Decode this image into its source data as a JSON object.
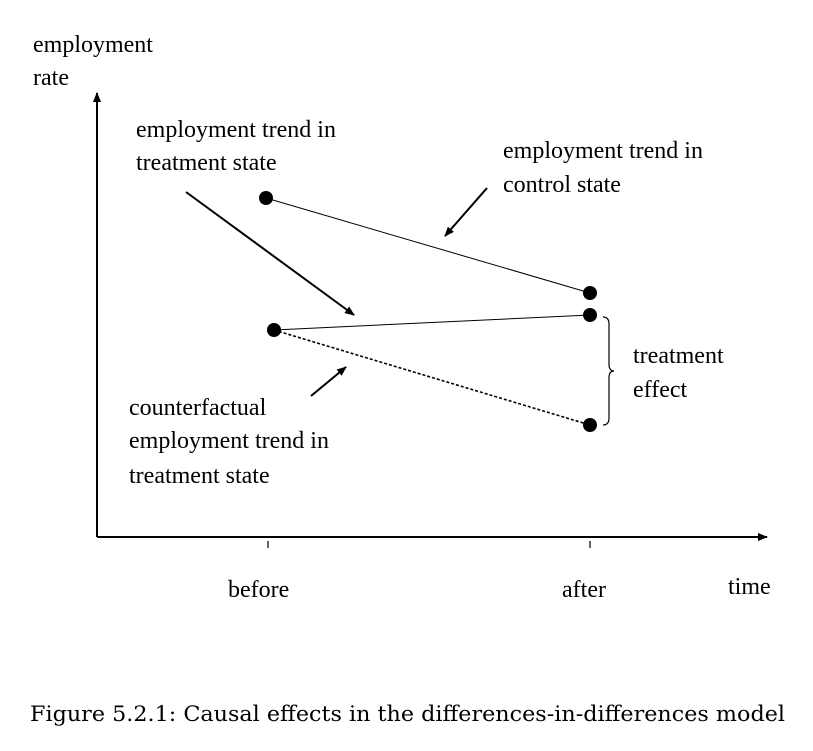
{
  "axes": {
    "y_label_line1": "employment",
    "y_label_line2": "rate",
    "x_label": "time",
    "x_ticks": [
      "before",
      "after"
    ]
  },
  "annotations": {
    "treatment_trend": [
      "employment trend in",
      "treatment state"
    ],
    "control_trend": [
      "employment trend in",
      "control state"
    ],
    "counterfactual_trend": [
      "counterfactual",
      "employment trend in",
      "treatment state"
    ],
    "treatment_effect": [
      "treatment",
      "effect"
    ]
  },
  "caption": "Figure 5.2.1: Causal effects in the differences-in-differences model"
}
